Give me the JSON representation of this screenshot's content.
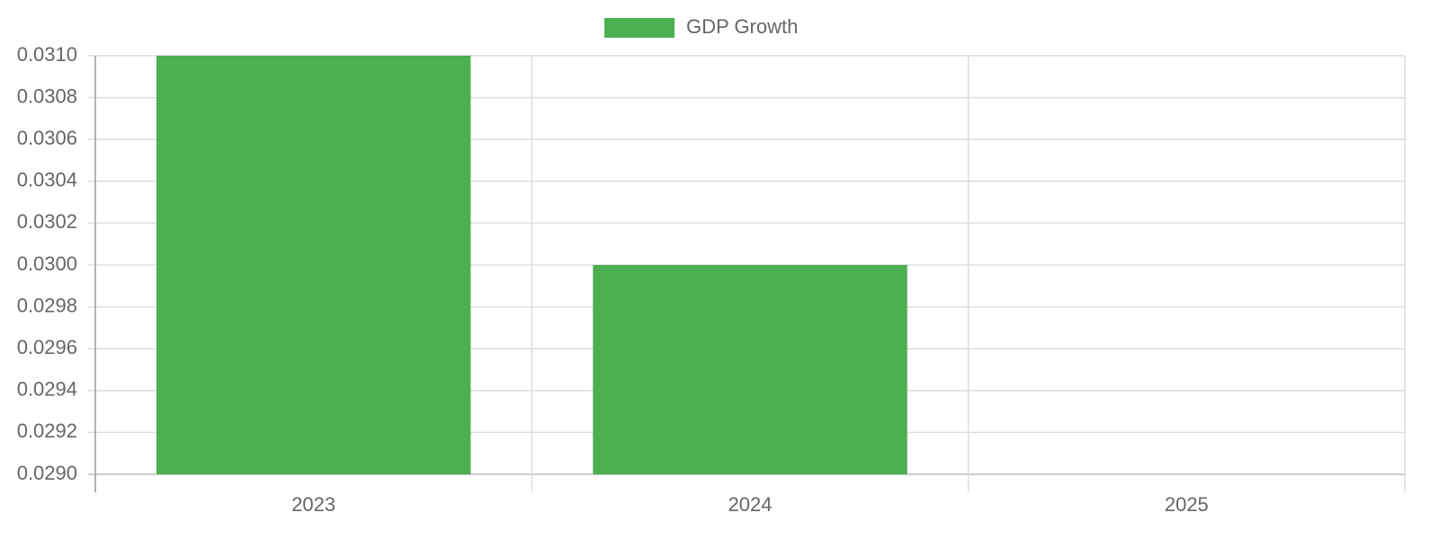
{
  "chart_data": {
    "type": "bar",
    "categories": [
      "2023",
      "2024",
      "2025"
    ],
    "series": [
      {
        "name": "GDP Growth",
        "color": "#4caf50",
        "values": [
          0.031,
          0.03,
          null
        ]
      }
    ],
    "ylim": [
      0.029,
      0.031
    ],
    "yticks": [
      {
        "value": 0.029,
        "label": "0.0290"
      },
      0.0292,
      0.0294,
      0.0296,
      0.0298,
      {
        "value": 0.03,
        "label": "0.0300"
      },
      0.0302,
      0.0304,
      0.0306,
      0.0308,
      {
        "value": 0.031,
        "label": "0.0310"
      }
    ],
    "grid": true,
    "legend": "top"
  }
}
